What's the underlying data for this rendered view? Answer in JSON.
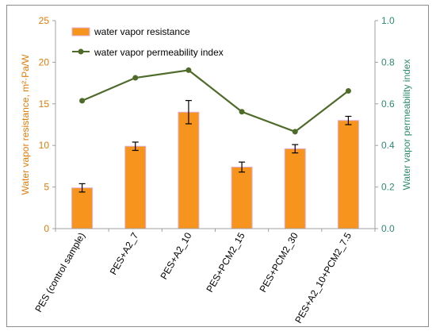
{
  "chart_data": {
    "type": "bar",
    "categories": [
      "PES (control sample)",
      "PES+A2_7",
      "PES+A2_10",
      "PES+PCM2_15",
      "PES+PCM2_30",
      "PES+A2_10+PCM2_7.5"
    ],
    "series": [
      {
        "name": "water vapor resistance",
        "type": "bar",
        "axis": "left",
        "values": [
          4.9,
          9.9,
          14.0,
          7.4,
          9.6,
          13.0
        ],
        "error": [
          0.5,
          0.5,
          1.4,
          0.6,
          0.5,
          0.5
        ],
        "color": "#f7941d"
      },
      {
        "name": "water vapor permeability index",
        "type": "line",
        "axis": "right",
        "values": [
          0.615,
          0.725,
          0.762,
          0.562,
          0.466,
          0.662
        ],
        "color": "#4e6b2a"
      }
    ],
    "ylabel": "Water vapor resistance, m²·Pa/W",
    "y2label": "Water vapor permeability index",
    "ylim": [
      0,
      25
    ],
    "y2lim": [
      0,
      1.0
    ],
    "yticks": [
      "0",
      "5",
      "10",
      "15",
      "20",
      "25"
    ],
    "y2ticks": [
      "0.0",
      "0.2",
      "0.4",
      "0.6",
      "0.8",
      "1.0"
    ],
    "legend_position": "top-left",
    "grid": false,
    "colors": {
      "left_axis": "#e07b0a",
      "right_axis": "#2e8b6f",
      "bar_fill": "#f7941d",
      "bar_edge": "#e0b0d8",
      "line": "#4e6b2a",
      "error_bar": "#000000"
    }
  }
}
